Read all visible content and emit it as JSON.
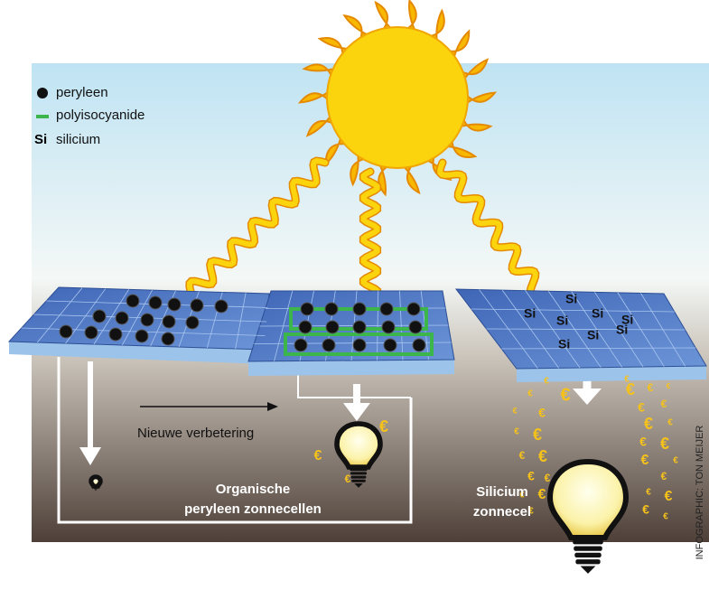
{
  "legend": [
    {
      "label": "peryleen"
    },
    {
      "label": "polyisocyanide"
    },
    {
      "symbol": "Si",
      "label": "silicium"
    }
  ],
  "silicon_cell": {
    "atom_label": "Si"
  },
  "annotation": "Nieuwe verbetering",
  "captions": {
    "organic": [
      "Organische",
      "peryleen zonnecellen"
    ],
    "silicon": [
      "Silicium",
      "zonnecel"
    ]
  },
  "currency": "€",
  "credit": "INFOGRAPHIC: TON MEIJER"
}
